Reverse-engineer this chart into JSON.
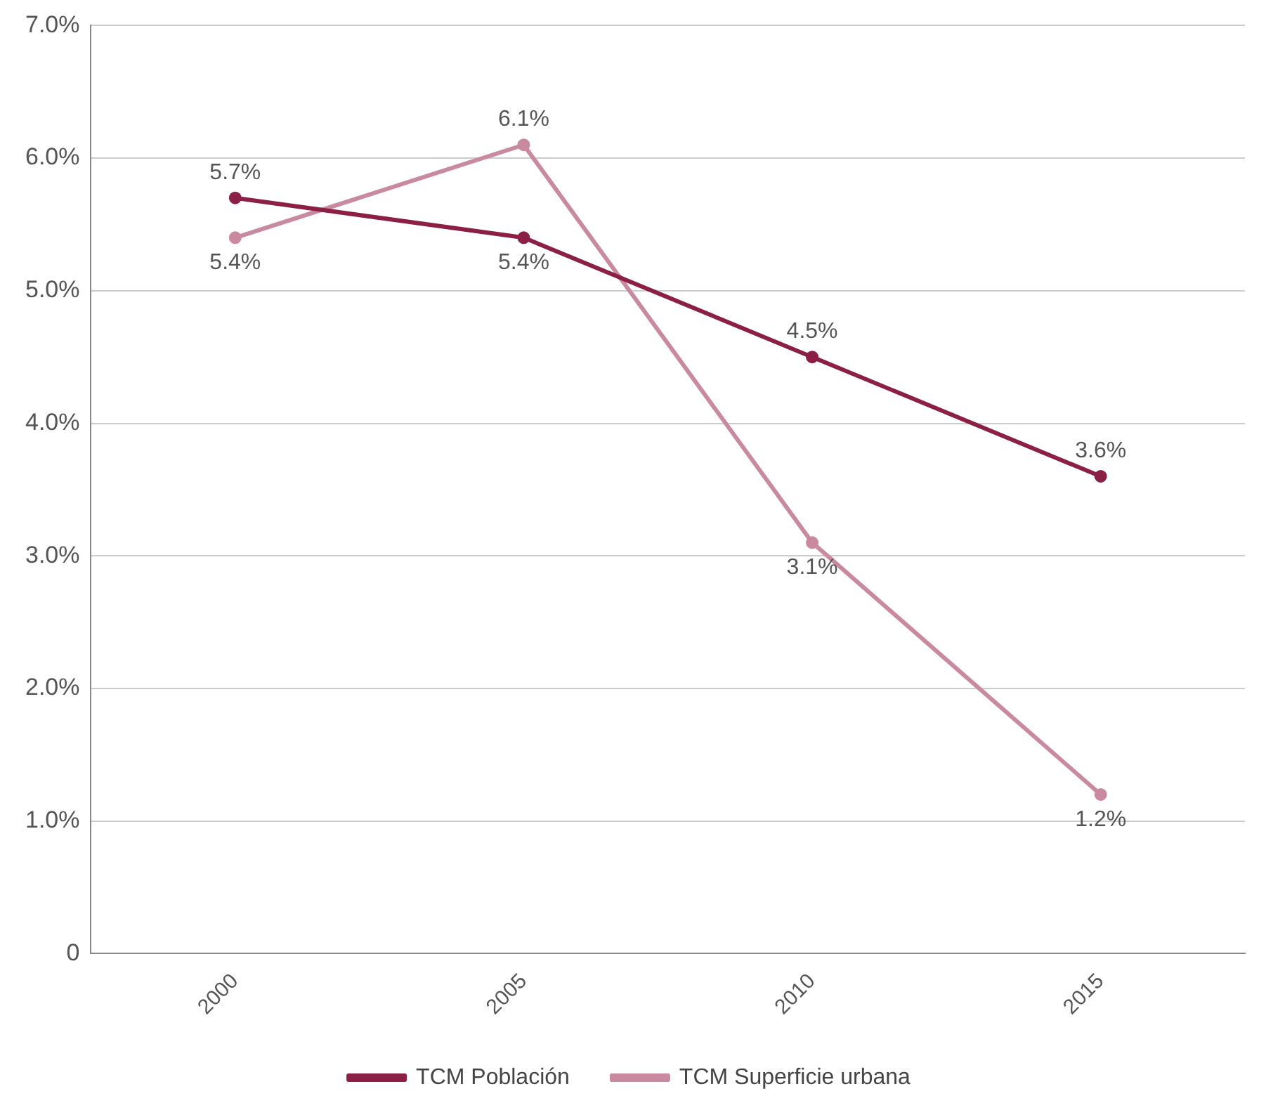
{
  "chart_data": {
    "type": "line",
    "categories": [
      "2000",
      "2005",
      "2010",
      "2015"
    ],
    "series": [
      {
        "name": "TCM Población",
        "color": "#8b1f45",
        "values": [
          5.7,
          5.4,
          4.5,
          3.6
        ],
        "value_labels": [
          "5.7%",
          "5.4%",
          "4.5%",
          "3.6%"
        ]
      },
      {
        "name": "TCM Superficie urbana",
        "color": "#c98aa0",
        "values": [
          5.4,
          6.1,
          3.1,
          1.2
        ],
        "value_labels": [
          "5.4%",
          "6.1%",
          "3.1%",
          "1.2%"
        ]
      }
    ],
    "ylim": [
      0,
      7
    ],
    "yticks": [
      {
        "value": 0,
        "label": "0"
      },
      {
        "value": 1,
        "label": "1.0%"
      },
      {
        "value": 2,
        "label": "2.0%"
      },
      {
        "value": 3,
        "label": "3.0%"
      },
      {
        "value": 4,
        "label": "4.0%"
      },
      {
        "value": 5,
        "label": "5.0%"
      },
      {
        "value": 6,
        "label": "6.0%"
      },
      {
        "value": 7,
        "label": "7.0%"
      }
    ],
    "grid": "y",
    "legend": "bottom",
    "marker": "circle",
    "line_style": "solid"
  }
}
